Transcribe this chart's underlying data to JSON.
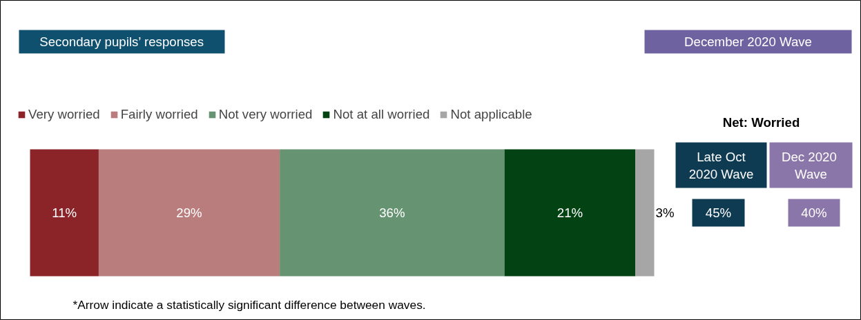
{
  "chart_data": {
    "type": "bar",
    "orientation": "horizontal",
    "stacked": true,
    "title": "Secondary pupils’ responses",
    "subtitle": "December 2020 Wave",
    "categories": [
      null
    ],
    "series": [
      {
        "name": "Very worried",
        "color": "#8b2428",
        "values": [
          11
        ],
        "value_labels": [
          "11%"
        ]
      },
      {
        "name": "Fairly worried",
        "color": "#b97d7e",
        "values": [
          29
        ],
        "value_labels": [
          "29%"
        ]
      },
      {
        "name": "Not very worried",
        "color": "#669472",
        "values": [
          36
        ],
        "value_labels": [
          "36%"
        ]
      },
      {
        "name": "Not at all worried",
        "color": "#034313",
        "values": [
          21
        ],
        "value_labels": [
          "21%"
        ]
      },
      {
        "name": "Not applicable",
        "color": "#a6a6a6",
        "values": [
          3
        ],
        "value_labels": [
          "3%"
        ]
      }
    ],
    "legend": "top left",
    "grid": false,
    "tick_labels": false,
    "annotations": [
      "Net: Worried",
      "Late Oct 2020 Wave",
      "45%",
      "Dec  2020 Wave",
      "40%",
      "*Arrow indicate a statistically significant difference between waves."
    ]
  }
}
